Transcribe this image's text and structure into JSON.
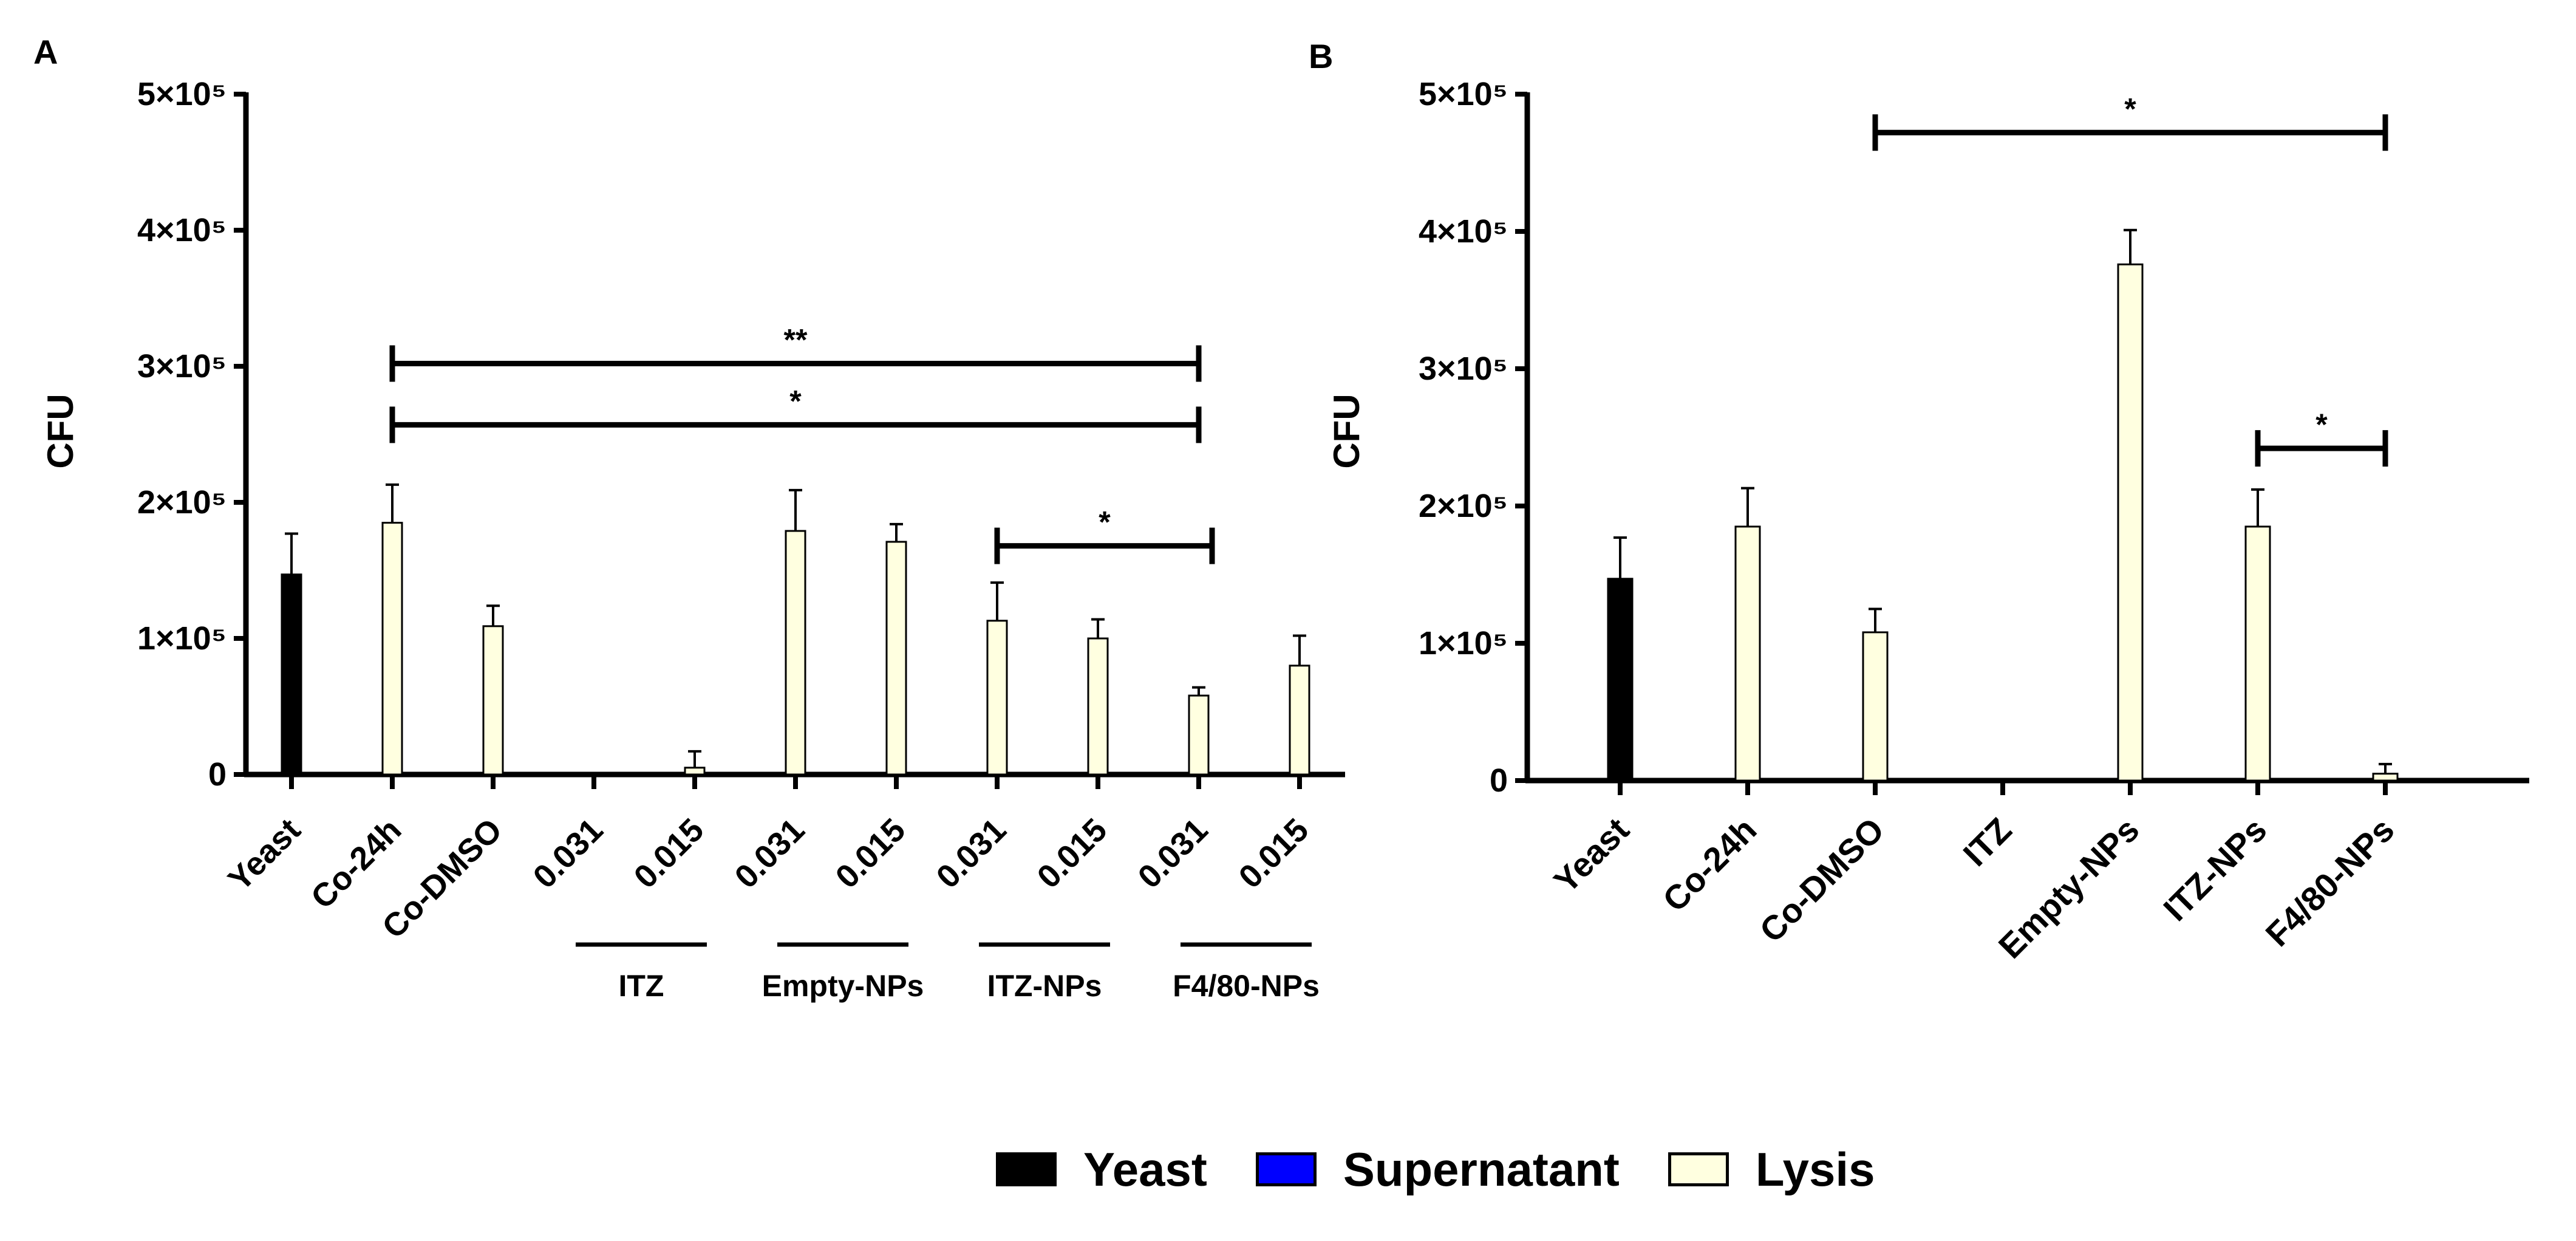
{
  "colors": {
    "Yeast": "#000000",
    "Supernatant": "#0000ff",
    "Lysis": "#ffffe0",
    "axis": "#000000"
  },
  "legend": [
    {
      "label": "Yeast",
      "color": "#000000"
    },
    {
      "label": "Supernatant",
      "color": "#0000ff"
    },
    {
      "label": "Lysis",
      "color": "#ffffe0"
    }
  ],
  "chart_data": [
    {
      "panel": "A",
      "type": "bar",
      "ylabel": "CFU",
      "ylim": [
        0,
        500000
      ],
      "yticks": [
        {
          "value": 0,
          "label": "0"
        },
        {
          "value": 100000,
          "label": "1×10⁵"
        },
        {
          "value": 200000,
          "label": "2×10⁵"
        },
        {
          "value": 300000,
          "label": "3×10⁵"
        },
        {
          "value": 400000,
          "label": "4×10⁵"
        },
        {
          "value": 500000,
          "label": "5×10⁵"
        }
      ],
      "categories": [
        "Yeast",
        "Co-24h",
        "Co-DMSO",
        "0.031",
        "0.015",
        "0.031",
        "0.015",
        "0.031",
        "0.015",
        "0.031",
        "0.015"
      ],
      "bars": [
        {
          "cat": 0,
          "series": "Yeast",
          "value": 147000,
          "error": 30000
        },
        {
          "cat": 1,
          "series": "Lysis",
          "value": 185000,
          "error": 28000
        },
        {
          "cat": 2,
          "series": "Lysis",
          "value": 109000,
          "error": 15000
        },
        {
          "cat": 4,
          "series": "Lysis",
          "value": 5000,
          "error": 12000
        },
        {
          "cat": 5,
          "series": "Lysis",
          "value": 179000,
          "error": 30000
        },
        {
          "cat": 6,
          "series": "Lysis",
          "value": 171000,
          "error": 13000
        },
        {
          "cat": 7,
          "series": "Lysis",
          "value": 113000,
          "error": 28000
        },
        {
          "cat": 8,
          "series": "Lysis",
          "value": 100000,
          "error": 14000
        },
        {
          "cat": 9,
          "series": "Lysis",
          "value": 58000,
          "error": 6000
        },
        {
          "cat": 10,
          "series": "Lysis",
          "value": 80000,
          "error": 22000
        }
      ],
      "groups": [
        {
          "label": "ITZ",
          "from": 3,
          "to": 4
        },
        {
          "label": "Empty-NPs",
          "from": 5,
          "to": 6
        },
        {
          "label": "ITZ-NPs",
          "from": 7,
          "to": 8
        },
        {
          "label": "F4/80-NPs",
          "from": 9,
          "to": 10
        }
      ],
      "significance": [
        {
          "from": 1,
          "to": 9,
          "y": 302000,
          "label": "**"
        },
        {
          "from": 1,
          "to": 9,
          "y": 257000,
          "label": "*"
        },
        {
          "from": 7,
          "to": 9,
          "y": 168000,
          "label": "*"
        }
      ]
    },
    {
      "panel": "B",
      "type": "bar",
      "ylabel": "CFU",
      "ylim": [
        0,
        500000
      ],
      "yticks": [
        {
          "value": 0,
          "label": "0"
        },
        {
          "value": 100000,
          "label": "1×10⁵"
        },
        {
          "value": 200000,
          "label": "2×10⁵"
        },
        {
          "value": 300000,
          "label": "3×10⁵"
        },
        {
          "value": 400000,
          "label": "4×10⁵"
        },
        {
          "value": 500000,
          "label": "5×10⁵"
        }
      ],
      "categories": [
        "Yeast",
        "Co-24h",
        "Co-DMSO",
        "ITZ",
        "Empty-NPs",
        "ITZ-NPs",
        "F4/80-NPs"
      ],
      "bars": [
        {
          "cat": 0,
          "series": "Yeast",
          "value": 147000,
          "error": 30000
        },
        {
          "cat": 1,
          "series": "Lysis",
          "value": 185000,
          "error": 28000
        },
        {
          "cat": 2,
          "series": "Lysis",
          "value": 108000,
          "error": 17000
        },
        {
          "cat": 4,
          "series": "Lysis",
          "value": 376000,
          "error": 25000
        },
        {
          "cat": 5,
          "series": "Lysis",
          "value": 185000,
          "error": 27000
        },
        {
          "cat": 6,
          "series": "Lysis",
          "value": 5000,
          "error": 7000
        }
      ],
      "groups": [],
      "significance": [
        {
          "from": 2,
          "to": 6,
          "y": 472000,
          "label": "*"
        },
        {
          "from": 5,
          "to": 6,
          "y": 242000,
          "label": "*"
        }
      ]
    }
  ],
  "panels": {
    "a_letter": "A",
    "b_letter": "B"
  }
}
